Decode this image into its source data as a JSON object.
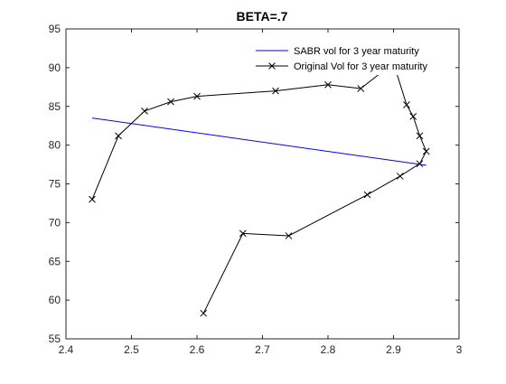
{
  "chart_data": {
    "type": "line",
    "title": "BETA=.7",
    "xlabel": "",
    "ylabel": "",
    "xlim": [
      2.4,
      3.0
    ],
    "ylim": [
      55,
      95
    ],
    "xticks": [
      2.4,
      2.5,
      2.6,
      2.7,
      2.8,
      2.9,
      3.0
    ],
    "xtick_labels": [
      "2.4",
      "2.5",
      "2.6",
      "2.7",
      "2.8",
      "2.9",
      "3"
    ],
    "yticks": [
      55,
      60,
      65,
      70,
      75,
      80,
      85,
      90,
      95
    ],
    "ytick_labels": [
      "55",
      "60",
      "65",
      "70",
      "75",
      "80",
      "85",
      "90",
      "95"
    ],
    "grid": false,
    "legend_position": "top-right",
    "series": [
      {
        "name": "SABR vol for 3 year maturity",
        "color": "#0000ff",
        "marker": "none",
        "x": [
          2.44,
          2.95
        ],
        "y": [
          83.5,
          77.4
        ]
      },
      {
        "name": "Original Vol for 3 year maturity",
        "color": "#000000",
        "marker": "x",
        "x": [
          2.44,
          2.48,
          2.52,
          2.56,
          2.6,
          2.72,
          2.8,
          2.85,
          2.9,
          2.92,
          2.93,
          2.94,
          2.95,
          2.94,
          2.91,
          2.86,
          2.74,
          2.67,
          2.61
        ],
        "y": [
          73.0,
          81.2,
          84.4,
          85.6,
          86.3,
          87.0,
          87.8,
          87.3,
          90.6,
          85.2,
          83.7,
          81.2,
          79.2,
          77.6,
          76.0,
          73.6,
          68.3,
          68.6,
          58.3
        ]
      }
    ]
  }
}
